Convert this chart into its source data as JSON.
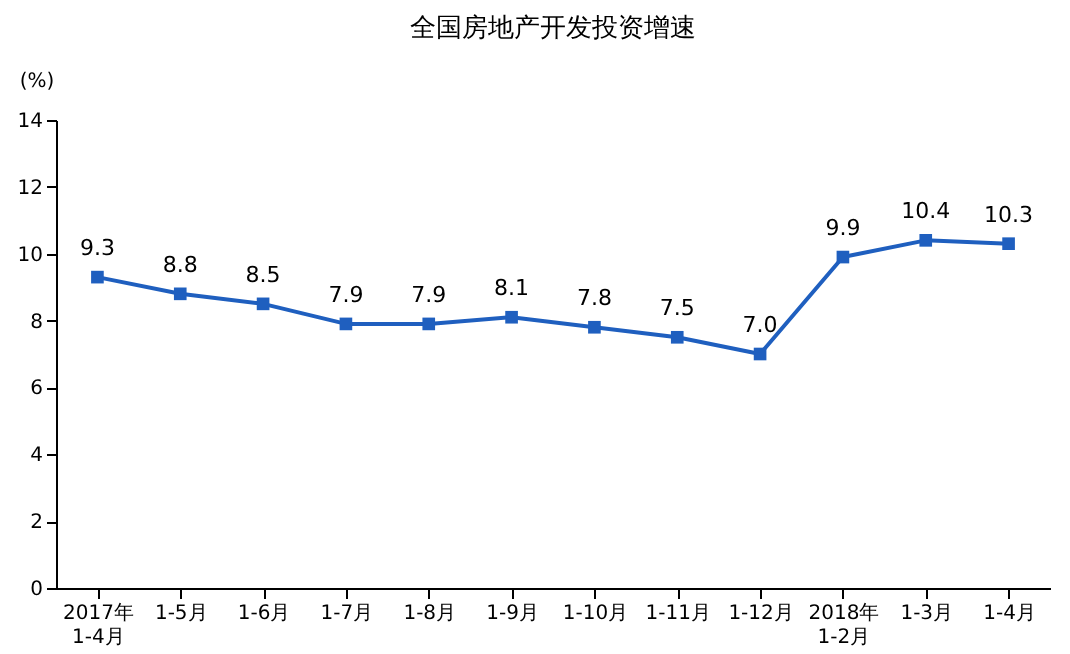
{
  "chart_data": {
    "type": "line",
    "title": "全国房地产开发投资增速",
    "ylabel": "(%)",
    "categories": [
      "2017年\n1-4月",
      "1-5月",
      "1-6月",
      "1-7月",
      "1-8月",
      "1-9月",
      "1-10月",
      "1-11月",
      "1-12月",
      "2018年\n1-2月",
      "1-3月",
      "1-4月"
    ],
    "series": [
      {
        "color": "#1f5fbf",
        "values": [
          9.3,
          8.8,
          8.5,
          7.9,
          7.9,
          8.1,
          7.8,
          7.5,
          7.0,
          9.9,
          10.4,
          10.3
        ],
        "value_labels": [
          "9.3",
          "8.8",
          "8.5",
          "7.9",
          "7.9",
          "8.1",
          "7.8",
          "7.5",
          "7.0",
          "9.9",
          "10.4",
          "10.3"
        ]
      }
    ],
    "ylim": [
      0,
      14
    ],
    "yticks": [
      0,
      2,
      4,
      6,
      8,
      10,
      12,
      14
    ],
    "grid": false,
    "marker": "square",
    "line_style": "solid"
  }
}
